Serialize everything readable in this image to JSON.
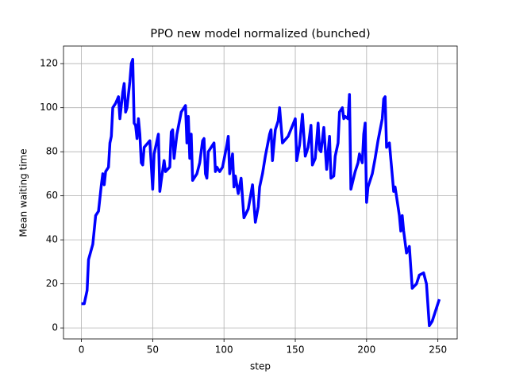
{
  "chart_data": {
    "type": "line",
    "title": "PPO new model normalized (bunched)",
    "x_label": "step",
    "y_label": "Mean waiting time",
    "x": [
      0,
      2,
      4,
      5,
      8,
      10,
      12,
      14,
      15,
      16,
      17,
      19,
      20,
      21,
      22,
      24,
      26,
      27,
      29,
      30,
      31,
      32,
      34,
      35,
      36,
      37,
      38,
      39,
      40,
      41,
      42,
      43,
      44,
      48,
      50,
      51,
      54,
      55,
      56,
      58,
      59,
      62,
      63,
      64,
      65,
      67,
      70,
      73,
      74,
      75,
      76,
      77,
      78,
      81,
      83,
      85,
      86,
      87,
      88,
      89,
      93,
      94,
      95,
      97,
      99,
      102,
      103,
      104,
      106,
      107,
      108,
      110,
      112,
      114,
      117,
      120,
      122,
      124,
      125,
      127,
      129,
      132,
      133,
      134,
      136,
      138,
      139,
      141,
      145,
      150,
      151,
      153,
      155,
      157,
      159,
      161,
      162,
      164,
      166,
      167,
      168,
      170,
      172,
      174,
      175,
      177,
      178,
      180,
      181,
      183,
      184,
      185,
      187,
      188,
      189,
      192,
      194,
      195,
      197,
      198,
      199,
      200,
      201,
      204,
      206,
      208,
      211,
      212,
      213,
      214,
      216,
      219,
      220,
      223,
      224,
      225,
      226,
      228,
      230,
      232,
      235,
      237,
      240,
      242,
      244,
      246,
      248,
      249,
      251
    ],
    "series": [
      {
        "name": "mean waiting time",
        "color": "#0000ff",
        "values": [
          11,
          11,
          17,
          31,
          38,
          51,
          53,
          65,
          70,
          65,
          71,
          73,
          84,
          87,
          100,
          102,
          105,
          95,
          107,
          111,
          98,
          100,
          112,
          120,
          122,
          93,
          92,
          86,
          95,
          88,
          75,
          74,
          82,
          85,
          63,
          79,
          88,
          62,
          67,
          76,
          71,
          73,
          89,
          90,
          77,
          88,
          98,
          101,
          84,
          96,
          77,
          88,
          67,
          70,
          75,
          85,
          86,
          70,
          68,
          80,
          84,
          71,
          73,
          71,
          73,
          83,
          87,
          70,
          79,
          64,
          69,
          61,
          68,
          50,
          54,
          65,
          48,
          55,
          64,
          70,
          78,
          88,
          90,
          76,
          90,
          94,
          100,
          84,
          87,
          95,
          76,
          83,
          97,
          78,
          82,
          92,
          74,
          77,
          93,
          81,
          80,
          91,
          72,
          87,
          68,
          69,
          78,
          84,
          98,
          100,
          95,
          96,
          95,
          106,
          63,
          71,
          75,
          79,
          75,
          88,
          93,
          57,
          64,
          70,
          77,
          85,
          95,
          104,
          105,
          82,
          84,
          62,
          64,
          51,
          44,
          51,
          44,
          34,
          37,
          18,
          20,
          24,
          25,
          20,
          1,
          3,
          7,
          9,
          13
        ]
      }
    ],
    "xlim": [
      -12.55,
      263.55
    ],
    "ylim": [
      -5,
      128
    ],
    "xticks": [
      0,
      50,
      100,
      150,
      200,
      250
    ],
    "yticks": [
      0,
      20,
      40,
      60,
      80,
      100,
      120
    ],
    "grid": true
  }
}
